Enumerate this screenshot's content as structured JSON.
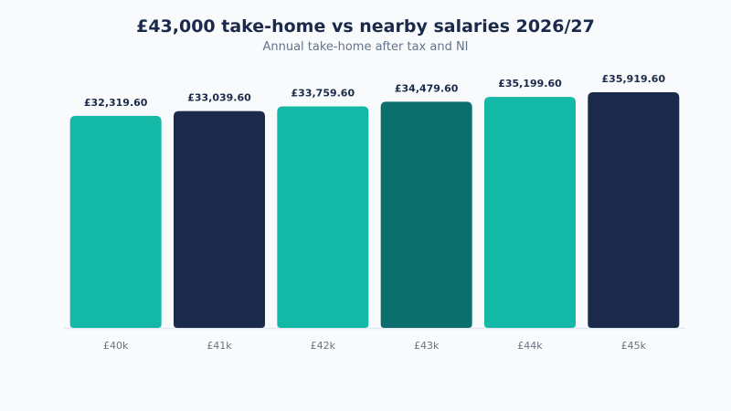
{
  "chart_data": {
    "type": "bar",
    "title": "£43,000 take-home vs nearby salaries 2026/27",
    "subtitle": "Annual take-home after tax and NI",
    "xlabel": "",
    "ylabel": "",
    "categories": [
      "£40k",
      "£41k",
      "£42k",
      "£43k",
      "£44k",
      "£45k"
    ],
    "values": [
      32319.6,
      33039.6,
      33759.6,
      34479.6,
      35199.6,
      35919.6
    ],
    "value_labels": [
      "£32,319.60",
      "£33,039.60",
      "£33,759.60",
      "£34,479.60",
      "£35,199.60",
      "£35,919.60"
    ],
    "bar_colors": [
      "#14b8a6",
      "#1b2a4a",
      "#14b8a6",
      "#0d6e6e",
      "#14b8a6",
      "#1b2a4a"
    ],
    "ylim": [
      0,
      36000
    ],
    "grid": false,
    "legend": "none"
  }
}
